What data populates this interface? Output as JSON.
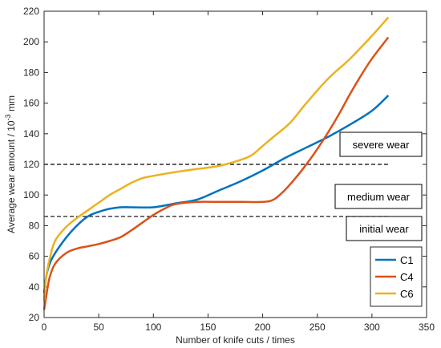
{
  "chart_data": {
    "type": "line",
    "xlabel": "Number of knife cuts / times",
    "ylabel_parts": [
      "Average wear amount / 10",
      "-3",
      " mm"
    ],
    "xlim": [
      0,
      350
    ],
    "ylim": [
      20,
      220
    ],
    "xticks": [
      0,
      50,
      100,
      150,
      200,
      250,
      300,
      350
    ],
    "yticks": [
      20,
      40,
      60,
      80,
      100,
      120,
      140,
      160,
      180,
      200,
      220
    ],
    "grid": false,
    "legend_position": "bottom-right",
    "series": [
      {
        "name": "C1",
        "color": "#0072BD",
        "x": [
          0,
          2,
          5,
          10,
          20,
          30,
          40,
          50,
          60,
          70,
          80,
          100,
          120,
          140,
          160,
          180,
          200,
          220,
          240,
          260,
          280,
          300,
          315
        ],
        "y": [
          36,
          47,
          55,
          62,
          72,
          80,
          86,
          89,
          91,
          92,
          92,
          92,
          94.5,
          97,
          103,
          109,
          116,
          124,
          131,
          138,
          146,
          155,
          165
        ]
      },
      {
        "name": "C4",
        "color": "#D95319",
        "x": [
          0,
          2,
          5,
          10,
          20,
          30,
          40,
          50,
          60,
          70,
          80,
          90,
          100,
          110,
          120,
          140,
          160,
          180,
          200,
          210,
          220,
          230,
          240,
          250,
          260,
          270,
          280,
          290,
          300,
          315
        ],
        "y": [
          25,
          34,
          46,
          55,
          62,
          65,
          66.5,
          68,
          70,
          72.5,
          77,
          82,
          87,
          91,
          94,
          95.5,
          95.5,
          95.5,
          95.5,
          97,
          103,
          111,
          120,
          130,
          141,
          153,
          166,
          178,
          189,
          203
        ]
      },
      {
        "name": "C6",
        "color": "#EDB120",
        "x": [
          0,
          2,
          5,
          10,
          20,
          30,
          40,
          50,
          60,
          70,
          80,
          90,
          100,
          120,
          140,
          160,
          180,
          190,
          200,
          210,
          225,
          240,
          260,
          280,
          300,
          315
        ],
        "y": [
          31,
          47,
          58,
          70,
          79,
          85,
          90,
          95,
          100,
          104,
          108,
          111,
          112.5,
          115,
          117,
          119,
          123,
          126,
          132,
          138,
          147,
          160,
          176,
          189,
          204,
          216
        ]
      }
    ],
    "reference_lines": [
      {
        "y": 86,
        "x_end": 315
      },
      {
        "y": 120,
        "x_end": 315
      }
    ],
    "annotations": [
      {
        "id": "severe",
        "text": "severe wear"
      },
      {
        "id": "medium",
        "text": "medium wear"
      },
      {
        "id": "initial",
        "text": "initial wear"
      }
    ]
  }
}
